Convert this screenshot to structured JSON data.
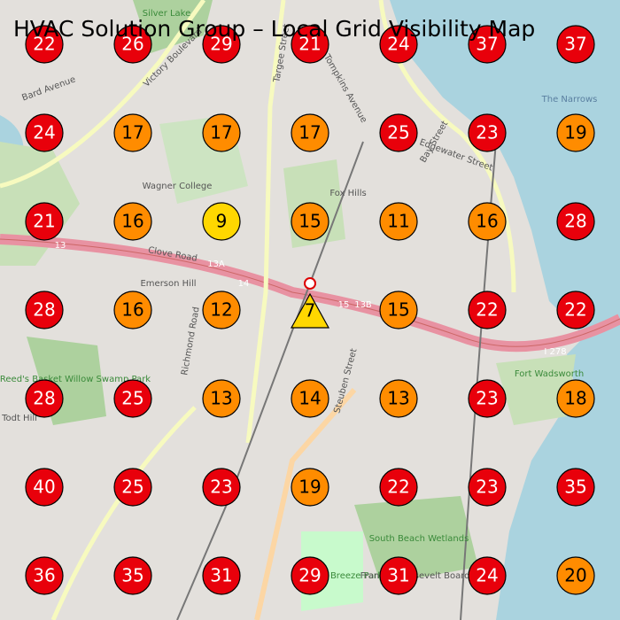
{
  "header": {
    "title": "HVAC Solution Group – Local Grid Visibility Map"
  },
  "grid": {
    "rows": [
      [
        22,
        26,
        29,
        21,
        24,
        37,
        37
      ],
      [
        24,
        17,
        17,
        17,
        25,
        23,
        19
      ],
      [
        21,
        16,
        9,
        15,
        11,
        16,
        28
      ],
      [
        28,
        16,
        12,
        7,
        15,
        22,
        22
      ],
      [
        28,
        25,
        13,
        14,
        13,
        23,
        18
      ],
      [
        40,
        25,
        23,
        19,
        22,
        23,
        35
      ],
      [
        36,
        35,
        31,
        29,
        31,
        24,
        20
      ]
    ],
    "colors": [
      [
        "#e8000b",
        "#e8000b",
        "#e8000b",
        "#e8000b",
        "#e8000b",
        "#e8000b",
        "#e8000b"
      ],
      [
        "#e8000b",
        "#ff8c00",
        "#ff8c00",
        "#ff8c00",
        "#e8000b",
        "#e8000b",
        "#ff8c00"
      ],
      [
        "#e8000b",
        "#ff8c00",
        "#ffd700",
        "#ff8c00",
        "#ff8c00",
        "#ff8c00",
        "#e8000b"
      ],
      [
        "#e8000b",
        "#ff8c00",
        "#ff8c00",
        "#ffd700",
        "#ff8c00",
        "#e8000b",
        "#e8000b"
      ],
      [
        "#e8000b",
        "#e8000b",
        "#ff8c00",
        "#ff8c00",
        "#ff8c00",
        "#e8000b",
        "#ff8c00"
      ],
      [
        "#e8000b",
        "#e8000b",
        "#e8000b",
        "#ff8c00",
        "#e8000b",
        "#e8000b",
        "#e8000b"
      ],
      [
        "#e8000b",
        "#e8000b",
        "#e8000b",
        "#e8000b",
        "#e8000b",
        "#e8000b",
        "#ff8c00"
      ]
    ],
    "current_cell": [
      3,
      3
    ]
  },
  "map_labels": [
    "Silver Lake",
    "Victory Boulevard",
    "Bard Avenue",
    "Tompkins Avenue",
    "Targee Street",
    "Bay Street",
    "Edgewater Street",
    "The Narrows",
    "Wagner College",
    "Fox Hills",
    "Clove Road",
    "Emerson Hill",
    "Richmond Road",
    "Reed's Basket Willow Swamp Park",
    "Steuben Street",
    "Fort Wadsworth",
    "Todt Hill",
    "South Beach Wetlands",
    "Ocean Breeze Park",
    "Franklin Roosevelt Boardwalk",
    "13",
    "13A",
    "14",
    "13B",
    "15",
    "I 278"
  ]
}
